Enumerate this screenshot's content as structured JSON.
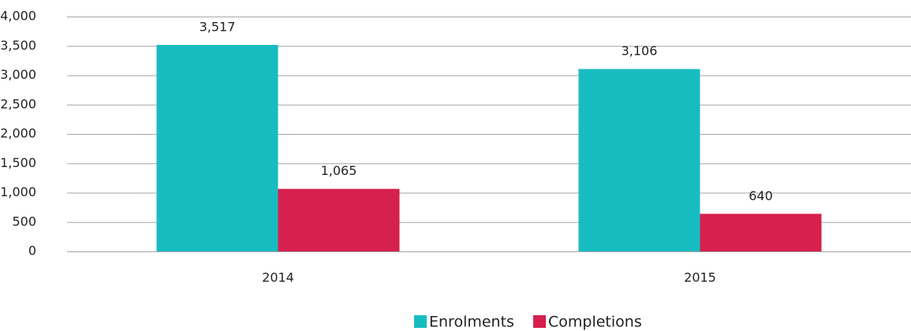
{
  "chart_data": {
    "type": "bar",
    "categories": [
      "2014",
      "2015"
    ],
    "series": [
      {
        "name": "Enrolments",
        "color": "#17bcc0",
        "values": [
          3517,
          3106
        ],
        "value_labels": [
          "3,517",
          "3,106"
        ]
      },
      {
        "name": "Completions",
        "color": "#d6204d",
        "values": [
          1065,
          640
        ],
        "value_labels": [
          "1,065",
          "640"
        ]
      }
    ],
    "ylim": [
      0,
      4000
    ],
    "yticks": [
      0,
      500,
      {
        "value": 1000,
        "label": "1,000"
      },
      {
        "value": 1500,
        "label": "1,500"
      },
      {
        "value": 2000,
        "label": "2,000"
      },
      {
        "value": 2500,
        "label": "2,500"
      },
      {
        "value": 3000,
        "label": "3,000"
      },
      {
        "value": 3500,
        "label": "3,500"
      },
      {
        "value": 4000,
        "label": "4,000"
      }
    ],
    "grid": true,
    "legend": "bottom"
  }
}
